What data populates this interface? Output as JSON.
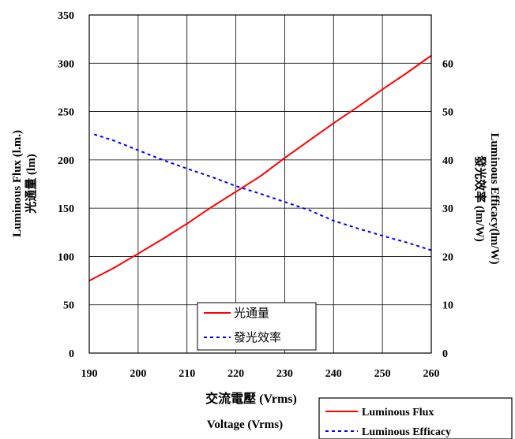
{
  "chart_data": {
    "type": "line",
    "x": [
      190,
      195,
      200,
      205,
      210,
      215,
      220,
      225,
      230,
      235,
      240,
      245,
      250,
      255,
      260
    ],
    "xlim": [
      190,
      260
    ],
    "xticks": [
      "190",
      "200",
      "210",
      "220",
      "230",
      "240",
      "250",
      "260"
    ],
    "ylim_left": [
      0,
      350
    ],
    "yticks_left": [
      "0",
      "50",
      "100",
      "150",
      "200",
      "250",
      "300",
      "350"
    ],
    "ylim_right": [
      0,
      70
    ],
    "yticks_right": [
      "0",
      "10",
      "20",
      "30",
      "40",
      "50",
      "60"
    ],
    "xlabel": "交流電壓 (Vrms)",
    "xlabel2": "Voltage (Vrms)",
    "ylabel_left_1": "Luminous Flux (l.m.)",
    "ylabel_left_2": "光通量 (lm)",
    "ylabel_right_1": "Luminous Efficacy(lm/W)",
    "ylabel_right_2": "發光效率 (lm/W)",
    "grid": true,
    "series": [
      {
        "name": "光通量",
        "name_en": "Luminous Flux",
        "axis": "left",
        "color": "#ff0000",
        "style": "solid",
        "x": [
          190,
          195,
          200,
          205,
          210,
          215,
          220,
          225,
          230,
          235,
          240,
          245,
          250,
          255,
          260
        ],
        "values": [
          75,
          88,
          103,
          118,
          134,
          151,
          167,
          183,
          202,
          220,
          238,
          255,
          273,
          290,
          308
        ]
      },
      {
        "name": "發光效率",
        "name_en": "Luminous Efficacy",
        "axis": "right",
        "color": "#0000ff",
        "style": "dashed",
        "x": [
          191,
          195,
          200,
          205,
          210,
          215,
          220,
          225,
          230,
          235,
          240,
          245,
          250,
          255,
          260
        ],
        "values": [
          45.3,
          44.0,
          42.0,
          40.0,
          38.2,
          36.5,
          34.6,
          33.0,
          31.3,
          29.6,
          27.4,
          25.8,
          24.3,
          22.9,
          21.3
        ]
      }
    ]
  }
}
